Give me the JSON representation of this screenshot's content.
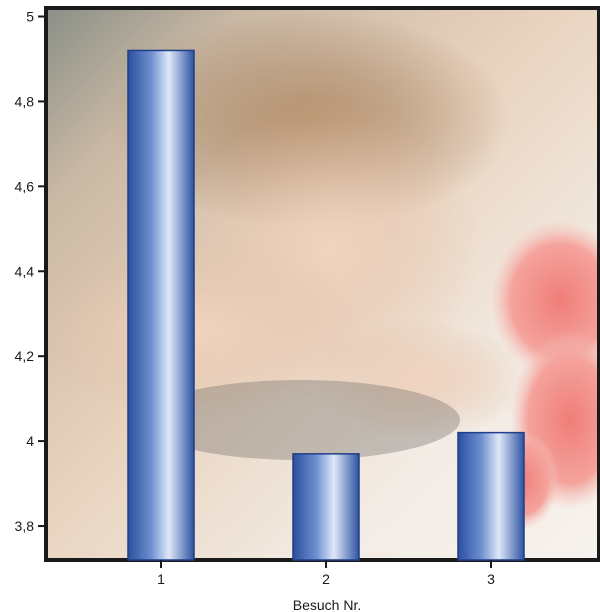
{
  "chart_data": {
    "type": "bar",
    "categories": [
      "1",
      "2",
      "3"
    ],
    "values": [
      4.92,
      3.97,
      4.02
    ],
    "xlabel": "Besuch Nr.",
    "ylabel": "",
    "ylim": [
      3.72,
      5.02
    ],
    "yticks": [
      {
        "value": 5,
        "label": "5"
      },
      {
        "value": 4.8,
        "label": "4,8"
      },
      {
        "value": 4.6,
        "label": "4,6"
      },
      {
        "value": 4.4,
        "label": "4,4"
      },
      {
        "value": 4.2,
        "label": "4,2"
      },
      {
        "value": 4,
        "label": "4"
      },
      {
        "value": 3.8,
        "label": "3,8"
      }
    ],
    "grid": false,
    "background": "photo of a relaxing woman with pink roses",
    "bar_color": "#3d66b8",
    "bar_highlight": "#dfe8f7"
  }
}
